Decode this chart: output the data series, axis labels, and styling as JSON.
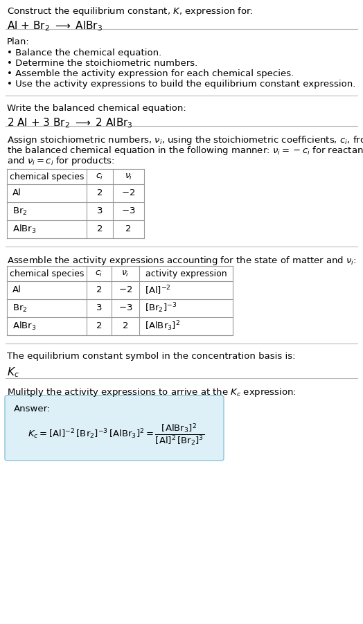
{
  "title_line1": "Construct the equilibrium constant, $K$, expression for:",
  "title_line2": "Al + Br$_2$ $\\longrightarrow$ AlBr$_3$",
  "plan_header": "Plan:",
  "plan_items": [
    "• Balance the chemical equation.",
    "• Determine the stoichiometric numbers.",
    "• Assemble the activity expression for each chemical species.",
    "• Use the activity expressions to build the equilibrium constant expression."
  ],
  "balanced_header": "Write the balanced chemical equation:",
  "balanced_eq": "2 Al + 3 Br$_2$ $\\longrightarrow$ 2 AlBr$_3$",
  "stoich_intro_lines": [
    "Assign stoichiometric numbers, $\\nu_i$, using the stoichiometric coefficients, $c_i$, from",
    "the balanced chemical equation in the following manner: $\\nu_i = -c_i$ for reactants",
    "and $\\nu_i = c_i$ for products:"
  ],
  "table1_headers": [
    "chemical species",
    "$c_i$",
    "$\\nu_i$"
  ],
  "table1_rows": [
    [
      "Al",
      "2",
      "$-2$"
    ],
    [
      "Br$_2$",
      "3",
      "$-3$"
    ],
    [
      "AlBr$_3$",
      "2",
      "2"
    ]
  ],
  "activity_intro": "Assemble the activity expressions accounting for the state of matter and $\\nu_i$:",
  "table2_headers": [
    "chemical species",
    "$c_i$",
    "$\\nu_i$",
    "activity expression"
  ],
  "table2_rows": [
    [
      "Al",
      "2",
      "$-2$",
      "$[\\mathrm{Al}]^{-2}$"
    ],
    [
      "Br$_2$",
      "3",
      "$-3$",
      "$[\\mathrm{Br}_2]^{-3}$"
    ],
    [
      "AlBr$_3$",
      "2",
      "2",
      "$[\\mathrm{AlBr}_3]^{2}$"
    ]
  ],
  "kc_intro": "The equilibrium constant symbol in the concentration basis is:",
  "kc_symbol": "$K_c$",
  "multiply_intro": "Mulitply the activity expressions to arrive at the $K_c$ expression:",
  "answer_label": "Answer:",
  "bg_color": "#ffffff",
  "answer_box_color": "#ddf0f8",
  "answer_box_border": "#89c4d8"
}
